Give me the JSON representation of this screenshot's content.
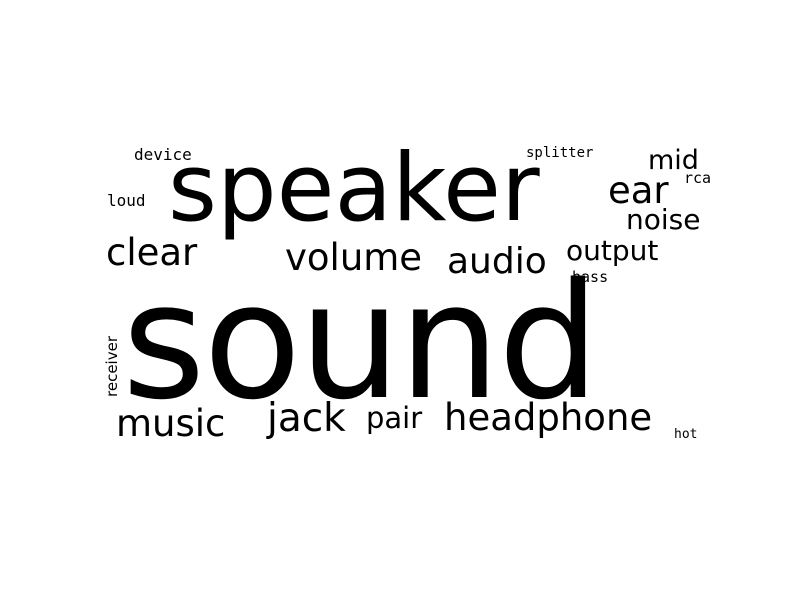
{
  "word_cloud": {
    "text_color": "#000000",
    "background": "#ffffff",
    "words": {
      "sound": "sound",
      "speaker": "speaker",
      "headphone": "headphone",
      "audio": "audio",
      "volume": "volume",
      "music": "music",
      "jack": "jack",
      "clear": "clear",
      "ear": "ear",
      "output": "output",
      "noise": "noise",
      "pair": "pair",
      "mid": "mid",
      "receiver": "receiver",
      "device": "device",
      "loud": "loud",
      "splitter": "splitter",
      "rca": "rca",
      "bass": "bass",
      "hot": "hot"
    }
  }
}
